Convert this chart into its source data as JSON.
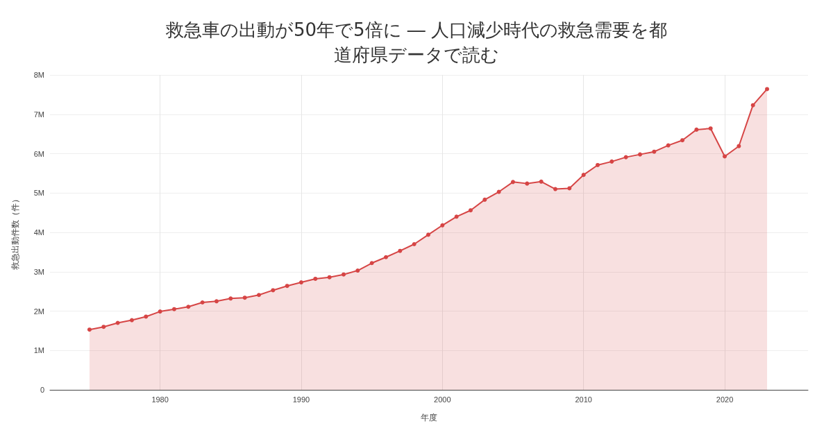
{
  "chart_data": {
    "type": "area",
    "title": "救急車の出動が50年で5倍に ― 人口減少時代の救急需要を都道府県データで読む",
    "xlabel": "年度",
    "ylabel": "救急出動件数（件）",
    "x": [
      1975,
      1976,
      1977,
      1978,
      1979,
      1980,
      1981,
      1982,
      1983,
      1984,
      1985,
      1986,
      1987,
      1988,
      1989,
      1990,
      1991,
      1992,
      1993,
      1994,
      1995,
      1996,
      1997,
      1998,
      1999,
      2000,
      2001,
      2002,
      2003,
      2004,
      2005,
      2006,
      2007,
      2008,
      2009,
      2010,
      2011,
      2012,
      2013,
      2014,
      2015,
      2016,
      2017,
      2018,
      2019,
      2020,
      2021,
      2022,
      2023
    ],
    "series": [
      {
        "color": "#d64545",
        "values": [
          1530000,
          1600000,
          1700000,
          1770000,
          1860000,
          1990000,
          2050000,
          2110000,
          2220000,
          2250000,
          2320000,
          2340000,
          2410000,
          2530000,
          2640000,
          2730000,
          2820000,
          2860000,
          2930000,
          3030000,
          3220000,
          3370000,
          3530000,
          3700000,
          3940000,
          4180000,
          4400000,
          4560000,
          4830000,
          5030000,
          5280000,
          5240000,
          5290000,
          5100000,
          5120000,
          5460000,
          5710000,
          5800000,
          5910000,
          5980000,
          6050000,
          6210000,
          6340000,
          6610000,
          6640000,
          5930000,
          6190000,
          7230000,
          7640000
        ]
      }
    ],
    "xlim": [
      1972.2,
      2025.9
    ],
    "xticks": [
      1980,
      1990,
      2000,
      2010,
      2020
    ],
    "ylim": [
      0,
      8000000
    ],
    "yticks": [
      0,
      {
        "value": 1000000,
        "label": "1M"
      },
      {
        "value": 2000000,
        "label": "2M"
      },
      {
        "value": 3000000,
        "label": "3M"
      },
      {
        "value": 4000000,
        "label": "4M"
      },
      {
        "value": 5000000,
        "label": "5M"
      },
      {
        "value": 6000000,
        "label": "6M"
      },
      {
        "value": 7000000,
        "label": "7M"
      },
      {
        "value": 8000000,
        "label": "8M"
      }
    ],
    "grid": true,
    "marker": "circle",
    "line_style": "solid"
  }
}
